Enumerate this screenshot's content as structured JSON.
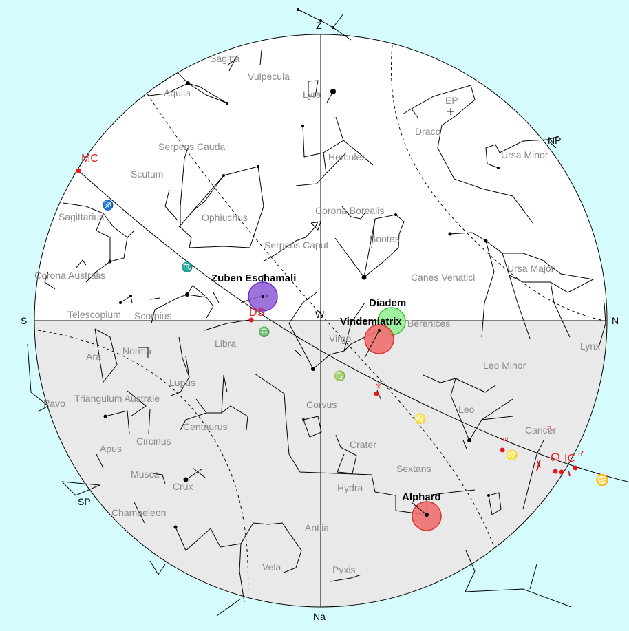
{
  "chart_title": "",
  "directions": {
    "zenith": "Z",
    "nadir": "Na",
    "north": "N",
    "south": "S",
    "west": "W",
    "north_pole": "NP",
    "south_pole": "SP",
    "ecliptic_pole": "EP"
  },
  "constellations": [
    "Sagitta",
    "Vulpecula",
    "Aquila",
    "Lyra",
    "Draco",
    "Serpens Cauda",
    "Hercules",
    "Ursa Minor",
    "Scutum",
    "Ophiuchus",
    "Corona Borealis",
    "Sagittarius",
    "Serpens Caput",
    "Bootes",
    "Ursa Major",
    "Canes Venatici",
    "Corona Australis",
    "Telescopium",
    "Scorpius",
    "Berenices",
    "Libra",
    "Virgo",
    "Lynx",
    "Ara",
    "Norma",
    "Leo Minor",
    "Lupus",
    "Pavo",
    "Triangulum Australe",
    "Corvus",
    "Leo",
    "Centaurus",
    "Circinus",
    "Cancer",
    "Apus",
    "Crater",
    "Musca",
    "Sextans",
    "Crux",
    "Hydra",
    "Chamaeleon",
    "Antlia",
    "Vela",
    "Pyxis"
  ],
  "highlighted_stars": [
    {
      "name": "Zuben Eschamali",
      "color": "#8e5bd6"
    },
    {
      "name": "Diadem",
      "color": "#8ff08f"
    },
    {
      "name": "Vindemiatrix",
      "color": "#ef6f6f"
    },
    {
      "name": "Alphard",
      "color": "#ef6f6f"
    }
  ],
  "chart_points": {
    "mc": "MC",
    "ds": "DS",
    "ic": "IC"
  },
  "planet_symbols": {
    "neptune": "♆",
    "jupiter": "♃",
    "pluto": "♇",
    "node": "☊",
    "mars": "♂"
  },
  "colors": {
    "sky_background": "#d6fbfd",
    "above_horizon": "#ffffff",
    "below_horizon": "#e9e9e9",
    "chart_red": "#e8191c"
  }
}
